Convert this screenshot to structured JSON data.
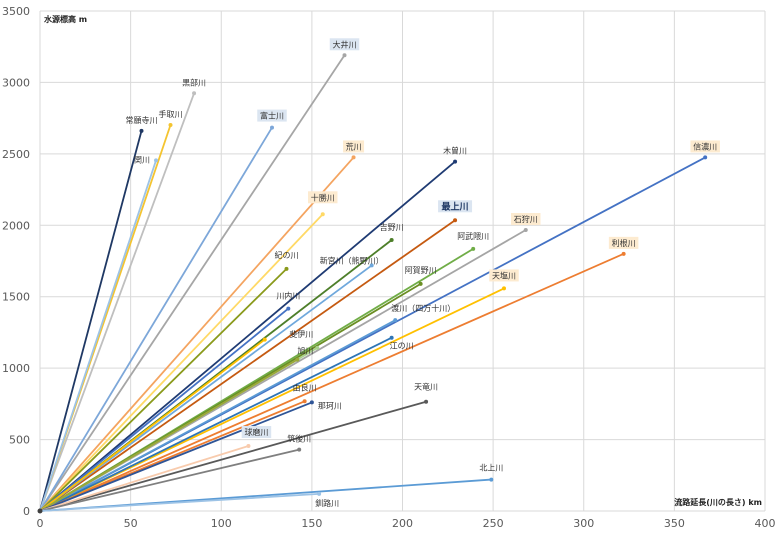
{
  "chart_data": {
    "type": "scatter",
    "ylabel": "水源標高 m",
    "xlabel": "流路延長(川の長さ) km",
    "xlim": [
      0,
      400
    ],
    "ylim": [
      0,
      3500
    ],
    "x_ticks": [
      0,
      50,
      100,
      150,
      200,
      250,
      300,
      350,
      400
    ],
    "y_ticks": [
      0,
      500,
      1000,
      1500,
      2000,
      2500,
      3000,
      3500
    ],
    "grid": true,
    "legend": "none",
    "series": [
      {
        "name": "大井川",
        "x": 168,
        "y": 3190,
        "color": "#a6a6a6",
        "highlight": "#dbe5f1"
      },
      {
        "name": "黒部川",
        "x": 85,
        "y": 2924,
        "color": "#bfbfbf",
        "highlight": ""
      },
      {
        "name": "手取川",
        "x": 72,
        "y": 2702,
        "color": "#f4c430",
        "highlight": ""
      },
      {
        "name": "常願寺川",
        "x": 56,
        "y": 2661,
        "color": "#1f3864",
        "highlight": ""
      },
      {
        "name": "関川",
        "x": 64,
        "y": 2454,
        "color": "#9dc3e6",
        "highlight": ""
      },
      {
        "name": "富士川",
        "x": 128,
        "y": 2684,
        "color": "#7da7d9",
        "highlight": "#dbe5f1"
      },
      {
        "name": "荒川",
        "x": 173,
        "y": 2475,
        "color": "#f4a460",
        "highlight": "#fdebd0"
      },
      {
        "name": "木曽川",
        "x": 229,
        "y": 2446,
        "color": "#1f3b73",
        "highlight": ""
      },
      {
        "name": "信濃川",
        "x": 367,
        "y": 2475,
        "color": "#4472c4",
        "highlight": "#fdebd0"
      },
      {
        "name": "十勝川",
        "x": 156,
        "y": 2077,
        "color": "#ffd966",
        "highlight": "#fdebd0"
      },
      {
        "name": "最上川",
        "x": 229,
        "y": 2035,
        "color": "#c55a11",
        "highlight": "#dbe5f1"
      },
      {
        "name": "石狩川",
        "x": 268,
        "y": 1967,
        "color": "#a5a5a5",
        "highlight": "#fdebd0"
      },
      {
        "name": "吉野川",
        "x": 194,
        "y": 1897,
        "color": "#4e7f2a",
        "highlight": ""
      },
      {
        "name": "阿武隈川",
        "x": 239,
        "y": 1835,
        "color": "#70ad47",
        "highlight": ""
      },
      {
        "name": "利根川",
        "x": 322,
        "y": 1800,
        "color": "#ed7d31",
        "highlight": "#fdebd0"
      },
      {
        "name": "紀の川",
        "x": 136,
        "y": 1695,
        "color": "#8a9a1b",
        "highlight": ""
      },
      {
        "name": "新宮川（熊野川）",
        "x": 183,
        "y": 1719,
        "color": "#6fa8dc",
        "highlight": ""
      },
      {
        "name": "阿賀野川",
        "x": 210,
        "y": 1590,
        "color": "#6b8e23",
        "highlight": ""
      },
      {
        "name": "天塩川",
        "x": 256,
        "y": 1558,
        "color": "#ffc000",
        "highlight": "#fdebd0"
      },
      {
        "name": "川内川",
        "x": 137,
        "y": 1417,
        "color": "#4472c4",
        "highlight": ""
      },
      {
        "name": "渡川（四万十川）",
        "x": 196,
        "y": 1336,
        "color": "#5b9bd5",
        "highlight": ""
      },
      {
        "name": "仁淀川",
        "x": 124,
        "y": 1200,
        "color": "#ffc000",
        "highlight": ""
      },
      {
        "name": "江の川",
        "x": 194,
        "y": 1213,
        "color": "#2e75b6",
        "highlight": ""
      },
      {
        "name": "斐伊川",
        "x": 153,
        "y": 1142,
        "color": "#a9d18e",
        "highlight": ""
      },
      {
        "name": "旭川",
        "x": 142,
        "y": 1060,
        "color": "#9aa838",
        "highlight": ""
      },
      {
        "name": "天竜川",
        "x": 213,
        "y": 765,
        "color": "#595959",
        "highlight": ""
      },
      {
        "name": "由良川",
        "x": 146,
        "y": 768,
        "color": "#ed7d31",
        "highlight": ""
      },
      {
        "name": "那珂川",
        "x": 150,
        "y": 760,
        "color": "#2f5597",
        "highlight": ""
      },
      {
        "name": "球磨川",
        "x": 115,
        "y": 455,
        "color": "#f8cbad",
        "highlight": "#dbe5f1"
      },
      {
        "name": "筑後川",
        "x": 143,
        "y": 430,
        "color": "#7f7f7f",
        "highlight": ""
      },
      {
        "name": "北上川",
        "x": 249,
        "y": 220,
        "color": "#5b9bd5",
        "highlight": ""
      },
      {
        "name": "釧路川",
        "x": 154,
        "y": 120,
        "color": "#9dc3e6",
        "highlight": ""
      }
    ]
  }
}
